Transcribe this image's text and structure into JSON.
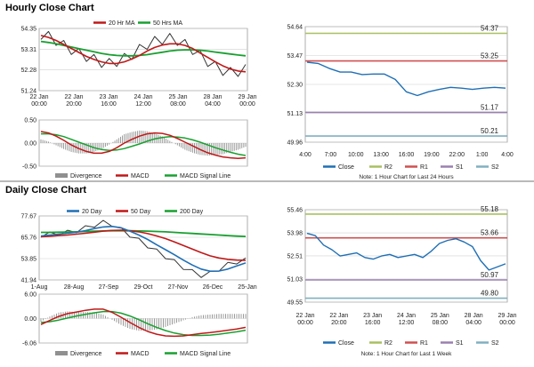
{
  "sections": {
    "hourly_title": "Hourly Close Chart",
    "daily_title": "Daily Close Chart"
  },
  "colors": {
    "close": "#1f6fb5",
    "ma_short": "#c01818",
    "ma_long": "#18a030",
    "r2": "#a8c060",
    "r1": "#d05050",
    "s1": "#9a80b0",
    "s2": "#80b0c0",
    "divergence": "#909090",
    "grid": "#d0d0d0"
  },
  "chart_data": [
    {
      "id": "hourly_price",
      "type": "line",
      "legend": [
        "20 Hr MA",
        "50 Hrs MA"
      ],
      "y_ticks": [
        "54.35",
        "53.31",
        "52.28",
        "51.24"
      ],
      "ylim": [
        51.24,
        54.35
      ],
      "x_ticks": [
        "22 Jan\n00:00",
        "22 Jan\n20:00",
        "23 Jan\n16:00",
        "24 Jan\n12:00",
        "25 Jan\n08:00",
        "28 Jan\n04:00",
        "29 Jan\n00:00"
      ],
      "series": [
        {
          "name": "Price",
          "values": [
            54.05,
            53.95,
            53.75,
            53.5,
            53.3,
            53.1,
            52.95,
            52.8,
            52.65,
            52.6,
            52.7,
            52.85,
            53.05,
            53.3,
            53.55,
            53.7,
            53.8,
            53.85,
            53.75,
            53.55,
            53.3,
            53.0,
            52.7,
            52.45,
            52.25,
            52.15,
            52.2,
            52.3
          ]
        },
        {
          "name": "20 Hr MA",
          "values": [
            54.0,
            53.9,
            53.75,
            53.55,
            53.35,
            53.15,
            52.95,
            52.8,
            52.68,
            52.6,
            52.6,
            52.68,
            52.82,
            53.0,
            53.22,
            53.4,
            53.52,
            53.58,
            53.58,
            53.5,
            53.35,
            53.12,
            52.9,
            52.68,
            52.48,
            52.32,
            52.22,
            52.18
          ]
        },
        {
          "name": "50 Hrs MA",
          "values": [
            53.7,
            53.65,
            53.58,
            53.5,
            53.42,
            53.34,
            53.26,
            53.18,
            53.1,
            53.04,
            53.0,
            52.98,
            52.98,
            53.0,
            53.04,
            53.1,
            53.16,
            53.22,
            53.26,
            53.28,
            53.28,
            53.26,
            53.22,
            53.17,
            53.12,
            53.07,
            53.02,
            52.98
          ]
        }
      ]
    },
    {
      "id": "hourly_macd",
      "type": "line",
      "y_ticks": [
        "0.50",
        "0.00",
        "-0.50"
      ],
      "ylim": [
        -0.5,
        0.5
      ],
      "legend": [
        "Divergence",
        "MACD",
        "MACD Signal Line"
      ],
      "series": [
        {
          "name": "MACD",
          "values": [
            0.25,
            0.22,
            0.15,
            0.06,
            -0.04,
            -0.12,
            -0.18,
            -0.22,
            -0.22,
            -0.18,
            -0.1,
            0.0,
            0.08,
            0.15,
            0.2,
            0.22,
            0.21,
            0.17,
            0.1,
            0.02,
            -0.06,
            -0.14,
            -0.21,
            -0.26,
            -0.3,
            -0.32,
            -0.33,
            -0.32
          ]
        },
        {
          "name": "MACD Signal Line",
          "values": [
            0.2,
            0.2,
            0.18,
            0.14,
            0.08,
            0.02,
            -0.04,
            -0.1,
            -0.14,
            -0.16,
            -0.15,
            -0.12,
            -0.07,
            -0.02,
            0.04,
            0.09,
            0.12,
            0.14,
            0.13,
            0.11,
            0.07,
            0.02,
            -0.04,
            -0.1,
            -0.15,
            -0.2,
            -0.24,
            -0.27
          ]
        }
      ]
    },
    {
      "id": "hourly_pivot",
      "type": "line",
      "y_ticks": [
        "54.64",
        "53.47",
        "52.30",
        "51.13",
        "49.96"
      ],
      "ylim": [
        49.96,
        54.64
      ],
      "x_ticks": [
        "4:00",
        "7:00",
        "10:00",
        "13:00",
        "16:00",
        "19:00",
        "22:00",
        "1:00",
        "4:00"
      ],
      "levels": [
        {
          "name": "R2",
          "value": 54.37,
          "label": "54.37"
        },
        {
          "name": "R1",
          "value": 53.25,
          "label": "53.25"
        },
        {
          "name": "S1",
          "value": 51.17,
          "label": "51.17"
        },
        {
          "name": "S2",
          "value": 50.21,
          "label": "50.21"
        }
      ],
      "series": [
        {
          "name": "Close",
          "values": [
            53.2,
            53.15,
            52.95,
            52.8,
            52.8,
            52.7,
            52.72,
            52.72,
            52.5,
            52.0,
            51.85,
            52.0,
            52.1,
            52.18,
            52.15,
            52.1,
            52.15,
            52.18,
            52.15
          ]
        }
      ],
      "legend": [
        "Close",
        "R2",
        "R1",
        "S1",
        "S2"
      ],
      "note": "Note: 1 Hour Chart for Last 24 Hours"
    },
    {
      "id": "daily_price",
      "type": "line",
      "legend": [
        "20 Day",
        "50 Day",
        "200 Day"
      ],
      "y_ticks": [
        "77.67",
        "65.76",
        "53.85",
        "41.94"
      ],
      "ylim": [
        41.94,
        77.67
      ],
      "x_ticks": [
        "1-Aug",
        "28-Aug",
        "27-Sep",
        "29-Oct",
        "27-Nov",
        "26-Dec",
        "25-Jan"
      ],
      "series": [
        {
          "name": "Price",
          "values": [
            67,
            67.5,
            68,
            68.5,
            69.5,
            71,
            72.5,
            74,
            73,
            70,
            67,
            64,
            61,
            58,
            55,
            52,
            49,
            46.5,
            44.5,
            45.5,
            48,
            50.5,
            52,
            53
          ]
        },
        {
          "name": "20 Day",
          "values": [
            66.5,
            67,
            67.5,
            68,
            68.6,
            69.5,
            70.6,
            71.5,
            71.8,
            71,
            69.2,
            67,
            64.5,
            61.6,
            58.8,
            56,
            53,
            50.3,
            48,
            46.8,
            46.9,
            48,
            49.8,
            51.4
          ]
        },
        {
          "name": "50 Day",
          "values": [
            66,
            66.3,
            66.7,
            67,
            67.5,
            68,
            68.6,
            69.2,
            69.6,
            69.7,
            69.4,
            68.8,
            67.8,
            66.5,
            65,
            63.2,
            61.2,
            59.2,
            57.2,
            55.4,
            54.2,
            53.4,
            53,
            52.9
          ]
        },
        {
          "name": "200 Day",
          "values": [
            68.5,
            68.5,
            68.6,
            68.7,
            68.8,
            69,
            69.2,
            69.3,
            69.4,
            69.4,
            69.4,
            69.3,
            69.2,
            69,
            68.8,
            68.5,
            68.2,
            67.9,
            67.6,
            67.3,
            67,
            66.7,
            66.4,
            66.2
          ]
        }
      ]
    },
    {
      "id": "daily_macd",
      "type": "line",
      "y_ticks": [
        "6.00",
        "0.00",
        "-6.06"
      ],
      "ylim": [
        -6.06,
        6.0
      ],
      "legend": [
        "Divergence",
        "MACD",
        "MACD Signal Line"
      ],
      "series": [
        {
          "name": "MACD",
          "values": [
            -1.5,
            -0.5,
            0.5,
            1.2,
            1.6,
            2.0,
            2.3,
            2.3,
            1.5,
            0.3,
            -1.0,
            -2.2,
            -3.2,
            -3.9,
            -4.3,
            -4.4,
            -4.3,
            -4.0,
            -3.7,
            -3.5,
            -3.2,
            -2.9,
            -2.6,
            -2.2
          ]
        },
        {
          "name": "MACD Signal Line",
          "values": [
            -1.0,
            -0.8,
            -0.4,
            0.1,
            0.6,
            1.0,
            1.4,
            1.7,
            1.7,
            1.3,
            0.6,
            -0.3,
            -1.3,
            -2.2,
            -3.0,
            -3.6,
            -4.0,
            -4.2,
            -4.2,
            -4.1,
            -3.9,
            -3.6,
            -3.3,
            -2.9
          ]
        }
      ]
    },
    {
      "id": "daily_pivot",
      "type": "line",
      "y_ticks": [
        "55.46",
        "53.98",
        "52.51",
        "51.03",
        "49.55"
      ],
      "ylim": [
        49.55,
        55.46
      ],
      "x_ticks": [
        "22 Jan\n00:00",
        "22 Jan\n20:00",
        "23 Jan\n16:00",
        "24 Jan\n12:00",
        "25 Jan\n08:00",
        "28 Jan\n04:00",
        "29 Jan\n00:00"
      ],
      "levels": [
        {
          "name": "R2",
          "value": 55.18,
          "label": "55.18"
        },
        {
          "name": "R1",
          "value": 53.66,
          "label": "53.66"
        },
        {
          "name": "S1",
          "value": 50.97,
          "label": "50.97"
        },
        {
          "name": "S2",
          "value": 49.8,
          "label": "49.80"
        }
      ],
      "series": [
        {
          "name": "Close",
          "values": [
            53.95,
            53.8,
            53.2,
            52.9,
            52.5,
            52.6,
            52.7,
            52.4,
            52.3,
            52.5,
            52.6,
            52.4,
            52.5,
            52.6,
            52.4,
            52.8,
            53.3,
            53.5,
            53.6,
            53.4,
            53.1,
            52.2,
            51.6,
            51.8,
            52.0
          ]
        }
      ],
      "legend": [
        "Close",
        "R2",
        "R1",
        "S1",
        "S2"
      ],
      "note": "Note: 1 Hour Chart for Last 1 Week"
    }
  ]
}
